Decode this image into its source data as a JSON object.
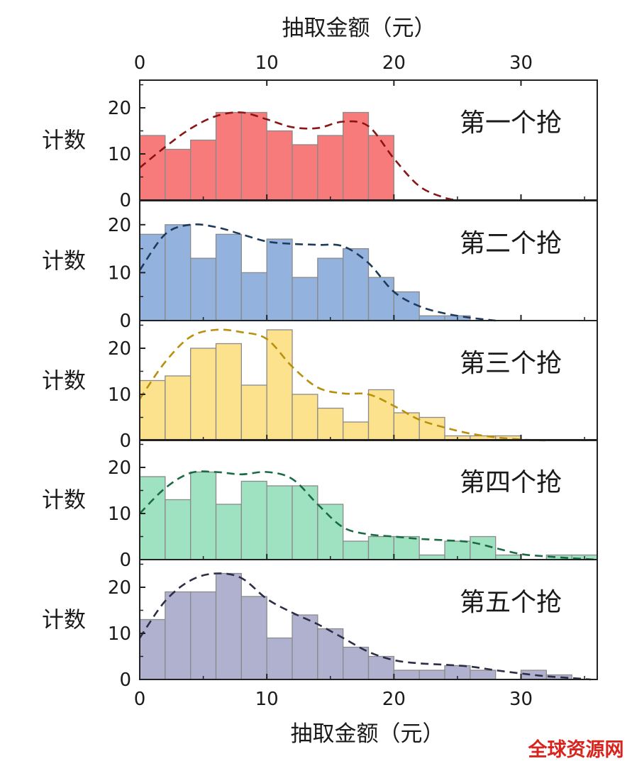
{
  "watermark": "全球资源网",
  "chart_data": {
    "type": "bar",
    "x_axis_label": "抽取金额（元）",
    "x_ticks": [
      0,
      10,
      20,
      30
    ],
    "xlim": [
      0,
      36
    ],
    "bin_width": 2,
    "y_axis_label": "计数",
    "grid": false,
    "panels": [
      {
        "title": "第一个抢",
        "ylim": [
          0,
          26
        ],
        "y_ticks": [
          0,
          10,
          20
        ],
        "bar_color": "#f87b7b",
        "curve_color": "#8b1414",
        "bins_start": [
          0,
          2,
          4,
          6,
          8,
          10,
          12,
          14,
          16,
          18
        ],
        "counts": [
          14,
          11,
          13,
          19,
          19,
          15,
          12,
          14,
          19,
          14
        ],
        "fit_curve": {
          "x": [
            0,
            2,
            4,
            6,
            8,
            10,
            12,
            14,
            16,
            18,
            20,
            22,
            24,
            25
          ],
          "y": [
            7,
            11.5,
            15.5,
            18.2,
            19,
            17.5,
            15.8,
            15.6,
            17,
            16,
            9,
            3,
            0.5,
            0
          ]
        }
      },
      {
        "title": "第二个抢",
        "ylim": [
          0,
          25
        ],
        "y_ticks": [
          0,
          10,
          20
        ],
        "bar_color": "#93b2dd",
        "curve_color": "#1e3a5a",
        "bins_start": [
          0,
          2,
          4,
          6,
          8,
          10,
          12,
          14,
          16,
          18,
          20,
          22,
          24
        ],
        "counts": [
          18,
          20,
          13,
          18,
          10,
          17,
          9,
          13,
          15,
          9,
          6,
          1,
          1
        ],
        "fit_curve": {
          "x": [
            0,
            2,
            4,
            6,
            8,
            10,
            12,
            14,
            16,
            18,
            20,
            22,
            24,
            26,
            28
          ],
          "y": [
            10.5,
            18,
            20,
            19.5,
            18,
            16.5,
            16,
            15.8,
            15.5,
            12,
            6,
            3,
            1.5,
            0.6,
            0
          ]
        }
      },
      {
        "title": "第三个抢",
        "ylim": [
          0,
          26
        ],
        "y_ticks": [
          0,
          10,
          20
        ],
        "bar_color": "#fde28d",
        "curve_color": "#b8900e",
        "bins_start": [
          0,
          2,
          4,
          6,
          8,
          10,
          12,
          14,
          16,
          18,
          20,
          22,
          24,
          26,
          28
        ],
        "counts": [
          13,
          14,
          20,
          21,
          12,
          24,
          10,
          7,
          4,
          11,
          6,
          5,
          1,
          1,
          1
        ],
        "fit_curve": {
          "x": [
            0,
            2,
            4,
            6,
            8,
            10,
            12,
            14,
            16,
            18,
            20,
            22,
            24,
            26,
            28,
            30,
            32
          ],
          "y": [
            9,
            17,
            22.5,
            24,
            23.5,
            22,
            16,
            11.5,
            10.2,
            10,
            7.5,
            4.5,
            2.8,
            1.5,
            0.7,
            0.2,
            0
          ]
        }
      },
      {
        "title": "第四个抢",
        "ylim": [
          0,
          26
        ],
        "y_ticks": [
          0,
          10,
          20
        ],
        "bar_color": "#9fe2c1",
        "curve_color": "#1a6a44",
        "bins_start": [
          0,
          2,
          4,
          6,
          8,
          10,
          12,
          14,
          16,
          18,
          20,
          22,
          24,
          26,
          28,
          30,
          32,
          34
        ],
        "counts": [
          18,
          13,
          19,
          12,
          17,
          16,
          16,
          12,
          4,
          5,
          5,
          1,
          4,
          5,
          1,
          0,
          1,
          1
        ],
        "fit_curve": {
          "x": [
            0,
            2,
            4,
            6,
            8,
            10,
            12,
            14,
            16,
            18,
            20,
            22,
            24,
            26,
            28,
            30,
            32,
            34,
            36
          ],
          "y": [
            10,
            15.5,
            18.8,
            19,
            18.5,
            19,
            17.5,
            12,
            7,
            5.5,
            5,
            4.5,
            4.2,
            3.8,
            2.5,
            1.2,
            0.7,
            0.3,
            0
          ]
        }
      },
      {
        "title": "第五个抢",
        "ylim": [
          0,
          26
        ],
        "y_ticks": [
          0,
          10,
          20
        ],
        "bar_color": "#b0b1cf",
        "curve_color": "#2b2e46",
        "bins_start": [
          0,
          2,
          4,
          6,
          8,
          10,
          12,
          14,
          16,
          18,
          20,
          22,
          24,
          26,
          28,
          30,
          32
        ],
        "counts": [
          13,
          19,
          19,
          23,
          18,
          9,
          14,
          11,
          7,
          5,
          2,
          2,
          3,
          2,
          0,
          2,
          1
        ],
        "fit_curve": {
          "x": [
            0,
            2,
            4,
            6,
            8,
            10,
            12,
            14,
            16,
            18,
            20,
            22,
            24,
            26,
            28,
            30,
            32,
            34,
            35.5
          ],
          "y": [
            9,
            17,
            21.5,
            23,
            22,
            17.5,
            14.5,
            12,
            9,
            6,
            4.2,
            3.5,
            3.2,
            2.8,
            2,
            1.3,
            0.7,
            0.3,
            0
          ]
        }
      }
    ]
  }
}
